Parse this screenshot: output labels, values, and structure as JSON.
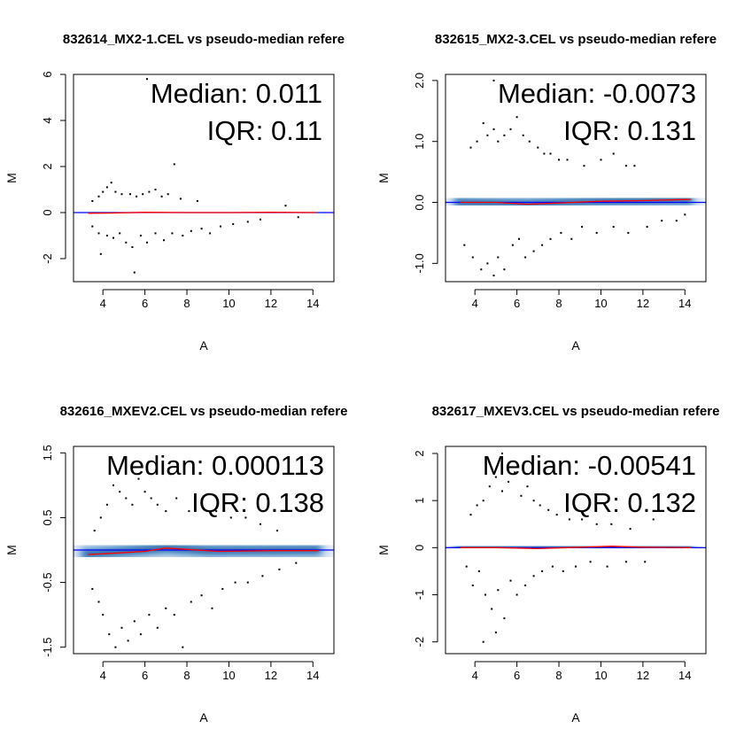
{
  "colors": {
    "density_light": "#e8eef8",
    "density_mid": "#6fa5d6",
    "density_dark": "#0a4f96",
    "reference_line": "#0000ff",
    "loess_line": "#ff0000",
    "points": "#000000"
  },
  "chart_data": [
    {
      "type": "scatter",
      "title": "832614_MX2-1.CEL vs pseudo-median refere",
      "xlabel": "A",
      "ylabel": "M",
      "xlim": [
        2.6,
        15.0
      ],
      "ylim": [
        -3.0,
        6.0
      ],
      "xticks": [
        {
          "v": 4,
          "label": "4"
        },
        {
          "v": 6,
          "label": "6"
        },
        {
          "v": 8,
          "label": "8"
        },
        {
          "v": 10,
          "label": "10"
        },
        {
          "v": 12,
          "label": "12"
        },
        {
          "v": 14,
          "label": "14"
        }
      ],
      "yticks": [
        {
          "v": -2,
          "label": "-2"
        },
        {
          "v": 0,
          "label": "0"
        },
        {
          "v": 2,
          "label": "2"
        },
        {
          "v": 4,
          "label": "4"
        },
        {
          "v": 6,
          "label": "6"
        }
      ],
      "median_label": "Median: 0.011",
      "iqr_label": "IQR: 0.11",
      "density_spread": 0.15,
      "density_trend": [
        [
          3.2,
          0.0
        ],
        [
          6.5,
          0.0
        ],
        [
          10,
          0.0
        ],
        [
          14.2,
          0.0
        ]
      ],
      "loess": [
        [
          3.3,
          -0.03
        ],
        [
          4.5,
          -0.02
        ],
        [
          6,
          0.01
        ],
        [
          8,
          0.0
        ],
        [
          10,
          0.0
        ],
        [
          12,
          0.01
        ],
        [
          14.2,
          0.0
        ]
      ],
      "outliers": [
        [
          6.1,
          5.8
        ],
        [
          7.4,
          2.1
        ],
        [
          3.5,
          0.5
        ],
        [
          3.8,
          0.7
        ],
        [
          4.0,
          0.9
        ],
        [
          4.2,
          1.1
        ],
        [
          4.4,
          1.3
        ],
        [
          4.6,
          0.9
        ],
        [
          4.9,
          0.8
        ],
        [
          5.3,
          0.8
        ],
        [
          5.6,
          0.7
        ],
        [
          5.9,
          0.8
        ],
        [
          6.2,
          0.9
        ],
        [
          6.5,
          1.0
        ],
        [
          6.8,
          0.7
        ],
        [
          7.1,
          0.8
        ],
        [
          7.7,
          0.6
        ],
        [
          8.5,
          0.5
        ],
        [
          3.5,
          -0.6
        ],
        [
          3.8,
          -0.9
        ],
        [
          3.9,
          -1.8
        ],
        [
          4.2,
          -1.0
        ],
        [
          4.5,
          -1.1
        ],
        [
          4.8,
          -0.9
        ],
        [
          5.1,
          -1.3
        ],
        [
          5.4,
          -1.5
        ],
        [
          5.5,
          -2.6
        ],
        [
          5.8,
          -1.0
        ],
        [
          6.1,
          -1.3
        ],
        [
          6.5,
          -0.9
        ],
        [
          6.9,
          -1.2
        ],
        [
          7.3,
          -0.9
        ],
        [
          7.8,
          -1.0
        ],
        [
          8.2,
          -0.8
        ],
        [
          8.7,
          -0.7
        ],
        [
          9.1,
          -0.9
        ],
        [
          9.6,
          -0.6
        ],
        [
          10.2,
          -0.5
        ],
        [
          10.9,
          -0.4
        ],
        [
          11.5,
          -0.3
        ],
        [
          12.7,
          0.3
        ],
        [
          13.3,
          -0.2
        ]
      ]
    },
    {
      "type": "scatter",
      "title": "832615_MX2-3.CEL vs pseudo-median refere",
      "xlabel": "A",
      "ylabel": "M",
      "xlim": [
        2.6,
        15.0
      ],
      "ylim": [
        -1.3,
        2.1
      ],
      "xticks": [
        {
          "v": 4,
          "label": "4"
        },
        {
          "v": 6,
          "label": "6"
        },
        {
          "v": 8,
          "label": "8"
        },
        {
          "v": 10,
          "label": "10"
        },
        {
          "v": 12,
          "label": "12"
        },
        {
          "v": 14,
          "label": "14"
        }
      ],
      "yticks": [
        {
          "v": -1.0,
          "label": "-1.0"
        },
        {
          "v": 0.0,
          "label": "0.0"
        },
        {
          "v": 1.0,
          "label": "1.0"
        },
        {
          "v": 2.0,
          "label": "2.0"
        }
      ],
      "median_label": "Median: -0.0073",
      "iqr_label": "IQR: 0.131",
      "density_spread": 0.22,
      "density_trend": [
        [
          3.2,
          0.0
        ],
        [
          6.5,
          -0.02
        ],
        [
          10,
          0.02
        ],
        [
          14.2,
          0.04
        ]
      ],
      "loess": [
        [
          3.3,
          0.0
        ],
        [
          5,
          0.0
        ],
        [
          6.5,
          -0.03
        ],
        [
          8,
          -0.01
        ],
        [
          10,
          0.02
        ],
        [
          12,
          0.03
        ],
        [
          14.3,
          0.05
        ]
      ],
      "outliers": [
        [
          3.8,
          0.9
        ],
        [
          4.1,
          1.0
        ],
        [
          4.4,
          1.3
        ],
        [
          4.6,
          1.1
        ],
        [
          4.9,
          1.2
        ],
        [
          5.1,
          1.0
        ],
        [
          5.4,
          1.1
        ],
        [
          5.7,
          1.2
        ],
        [
          6.0,
          1.4
        ],
        [
          6.3,
          1.1
        ],
        [
          6.6,
          1.0
        ],
        [
          7.0,
          0.9
        ],
        [
          7.3,
          0.8
        ],
        [
          7.6,
          0.8
        ],
        [
          8.0,
          0.7
        ],
        [
          8.4,
          0.7
        ],
        [
          9.2,
          0.6
        ],
        [
          10.0,
          0.7
        ],
        [
          10.6,
          0.8
        ],
        [
          11.2,
          0.6
        ],
        [
          11.6,
          0.6
        ],
        [
          4.9,
          2.0
        ],
        [
          3.5,
          -0.7
        ],
        [
          3.9,
          -0.9
        ],
        [
          4.3,
          -1.1
        ],
        [
          4.6,
          -1.0
        ],
        [
          4.9,
          -1.2
        ],
        [
          5.1,
          -0.9
        ],
        [
          5.4,
          -1.1
        ],
        [
          5.8,
          -0.7
        ],
        [
          6.1,
          -0.6
        ],
        [
          6.4,
          -0.9
        ],
        [
          6.8,
          -0.8
        ],
        [
          7.2,
          -0.7
        ],
        [
          7.6,
          -0.6
        ],
        [
          8.1,
          -0.5
        ],
        [
          8.6,
          -0.6
        ],
        [
          9.1,
          -0.4
        ],
        [
          9.8,
          -0.5
        ],
        [
          10.6,
          -0.4
        ],
        [
          11.3,
          -0.5
        ],
        [
          12.2,
          -0.4
        ],
        [
          12.9,
          -0.3
        ],
        [
          13.6,
          -0.3
        ],
        [
          14.0,
          -0.2
        ]
      ]
    },
    {
      "type": "scatter",
      "title": "832616_MXEV2.CEL vs pseudo-median refere",
      "xlabel": "A",
      "ylabel": "M",
      "xlim": [
        2.6,
        15.0
      ],
      "ylim": [
        -1.6,
        1.6
      ],
      "xticks": [
        {
          "v": 4,
          "label": "4"
        },
        {
          "v": 6,
          "label": "6"
        },
        {
          "v": 8,
          "label": "8"
        },
        {
          "v": 10,
          "label": "10"
        },
        {
          "v": 12,
          "label": "12"
        },
        {
          "v": 14,
          "label": "14"
        }
      ],
      "yticks": [
        {
          "v": -1.5,
          "label": "-1.5"
        },
        {
          "v": -0.5,
          "label": "-0.5"
        },
        {
          "v": 0.5,
          "label": "0.5"
        },
        {
          "v": 1.5,
          "label": "1.5"
        }
      ],
      "median_label": "Median: 0.000113",
      "iqr_label": "IQR: 0.138",
      "density_spread": 0.24,
      "density_trend": [
        [
          3.2,
          -0.06
        ],
        [
          5,
          -0.02
        ],
        [
          7,
          0.03
        ],
        [
          9,
          -0.01
        ],
        [
          14.2,
          0.0
        ]
      ],
      "loess": [
        [
          3.3,
          -0.07
        ],
        [
          4.5,
          -0.05
        ],
        [
          6,
          -0.02
        ],
        [
          7,
          0.03
        ],
        [
          8,
          0.01
        ],
        [
          9.5,
          -0.02
        ],
        [
          12,
          -0.01
        ],
        [
          14.3,
          -0.01
        ]
      ],
      "outliers": [
        [
          3.6,
          0.3
        ],
        [
          3.9,
          0.5
        ],
        [
          4.2,
          0.7
        ],
        [
          4.5,
          1.0
        ],
        [
          4.8,
          0.9
        ],
        [
          5.1,
          0.8
        ],
        [
          5.4,
          0.7
        ],
        [
          5.7,
          1.1
        ],
        [
          6.0,
          0.9
        ],
        [
          6.3,
          0.8
        ],
        [
          6.6,
          0.7
        ],
        [
          7.0,
          0.6
        ],
        [
          7.5,
          0.8
        ],
        [
          8.1,
          0.6
        ],
        [
          8.7,
          0.7
        ],
        [
          9.4,
          0.6
        ],
        [
          10.1,
          0.5
        ],
        [
          10.8,
          0.5
        ],
        [
          11.5,
          0.4
        ],
        [
          12.3,
          0.3
        ],
        [
          3.5,
          -0.6
        ],
        [
          3.8,
          -0.8
        ],
        [
          4.0,
          -1.0
        ],
        [
          4.3,
          -1.3
        ],
        [
          4.6,
          -1.5
        ],
        [
          4.9,
          -1.2
        ],
        [
          5.2,
          -1.4
        ],
        [
          5.5,
          -1.1
        ],
        [
          5.8,
          -1.3
        ],
        [
          6.2,
          -1.0
        ],
        [
          6.6,
          -1.2
        ],
        [
          7.0,
          -0.9
        ],
        [
          7.4,
          -1.0
        ],
        [
          7.8,
          -1.5
        ],
        [
          8.2,
          -0.8
        ],
        [
          8.7,
          -0.7
        ],
        [
          9.2,
          -0.9
        ],
        [
          9.7,
          -0.6
        ],
        [
          10.3,
          -0.5
        ],
        [
          10.9,
          -0.5
        ],
        [
          11.6,
          -0.4
        ],
        [
          12.4,
          -0.3
        ],
        [
          13.2,
          -0.2
        ]
      ]
    },
    {
      "type": "scatter",
      "title": "832617_MXEV3.CEL vs pseudo-median refere",
      "xlabel": "A",
      "ylabel": "M",
      "xlim": [
        2.6,
        15.0
      ],
      "ylim": [
        -2.25,
        2.15
      ],
      "xticks": [
        {
          "v": 4,
          "label": "4"
        },
        {
          "v": 6,
          "label": "6"
        },
        {
          "v": 8,
          "label": "8"
        },
        {
          "v": 10,
          "label": "10"
        },
        {
          "v": 12,
          "label": "12"
        },
        {
          "v": 14,
          "label": "14"
        }
      ],
      "yticks": [
        {
          "v": -2,
          "label": "-2"
        },
        {
          "v": -1,
          "label": "-1"
        },
        {
          "v": 0,
          "label": "0"
        },
        {
          "v": 1,
          "label": "1"
        },
        {
          "v": 2,
          "label": "2"
        }
      ],
      "median_label": "Median: -0.00541",
      "iqr_label": "IQR: 0.132",
      "density_spread": 0.28,
      "density_trend": [
        [
          3.2,
          0.0
        ],
        [
          6.5,
          0.0
        ],
        [
          10,
          0.02
        ],
        [
          14.2,
          0.0
        ]
      ],
      "loess": [
        [
          3.3,
          0.0
        ],
        [
          5,
          0.0
        ],
        [
          7,
          -0.02
        ],
        [
          9,
          0.01
        ],
        [
          10.5,
          0.03
        ],
        [
          12,
          0.01
        ],
        [
          14.3,
          0.0
        ]
      ],
      "outliers": [
        [
          3.8,
          0.7
        ],
        [
          4.1,
          0.9
        ],
        [
          4.4,
          1.0
        ],
        [
          4.7,
          1.3
        ],
        [
          5.0,
          1.5
        ],
        [
          5.3,
          1.2
        ],
        [
          5.6,
          1.4
        ],
        [
          5.9,
          1.6
        ],
        [
          6.2,
          1.1
        ],
        [
          6.5,
          1.3
        ],
        [
          6.8,
          1.0
        ],
        [
          7.1,
          0.9
        ],
        [
          7.5,
          0.8
        ],
        [
          7.9,
          0.7
        ],
        [
          8.5,
          0.6
        ],
        [
          9.1,
          0.6
        ],
        [
          9.8,
          0.5
        ],
        [
          10.5,
          0.5
        ],
        [
          11.4,
          0.4
        ],
        [
          12.5,
          0.6
        ],
        [
          5.3,
          2.0
        ],
        [
          3.6,
          -0.4
        ],
        [
          3.9,
          -0.8
        ],
        [
          4.2,
          -0.5
        ],
        [
          4.5,
          -1.0
        ],
        [
          4.8,
          -1.3
        ],
        [
          5.1,
          -0.9
        ],
        [
          5.4,
          -1.5
        ],
        [
          5.7,
          -0.7
        ],
        [
          6.0,
          -1.0
        ],
        [
          6.4,
          -0.8
        ],
        [
          6.8,
          -0.6
        ],
        [
          7.2,
          -0.5
        ],
        [
          7.7,
          -0.4
        ],
        [
          8.2,
          -0.5
        ],
        [
          8.8,
          -0.4
        ],
        [
          9.5,
          -0.3
        ],
        [
          10.3,
          -0.4
        ],
        [
          11.2,
          -0.3
        ],
        [
          12.1,
          -0.3
        ],
        [
          4.4,
          -2.0
        ],
        [
          5.0,
          -1.8
        ]
      ]
    }
  ]
}
